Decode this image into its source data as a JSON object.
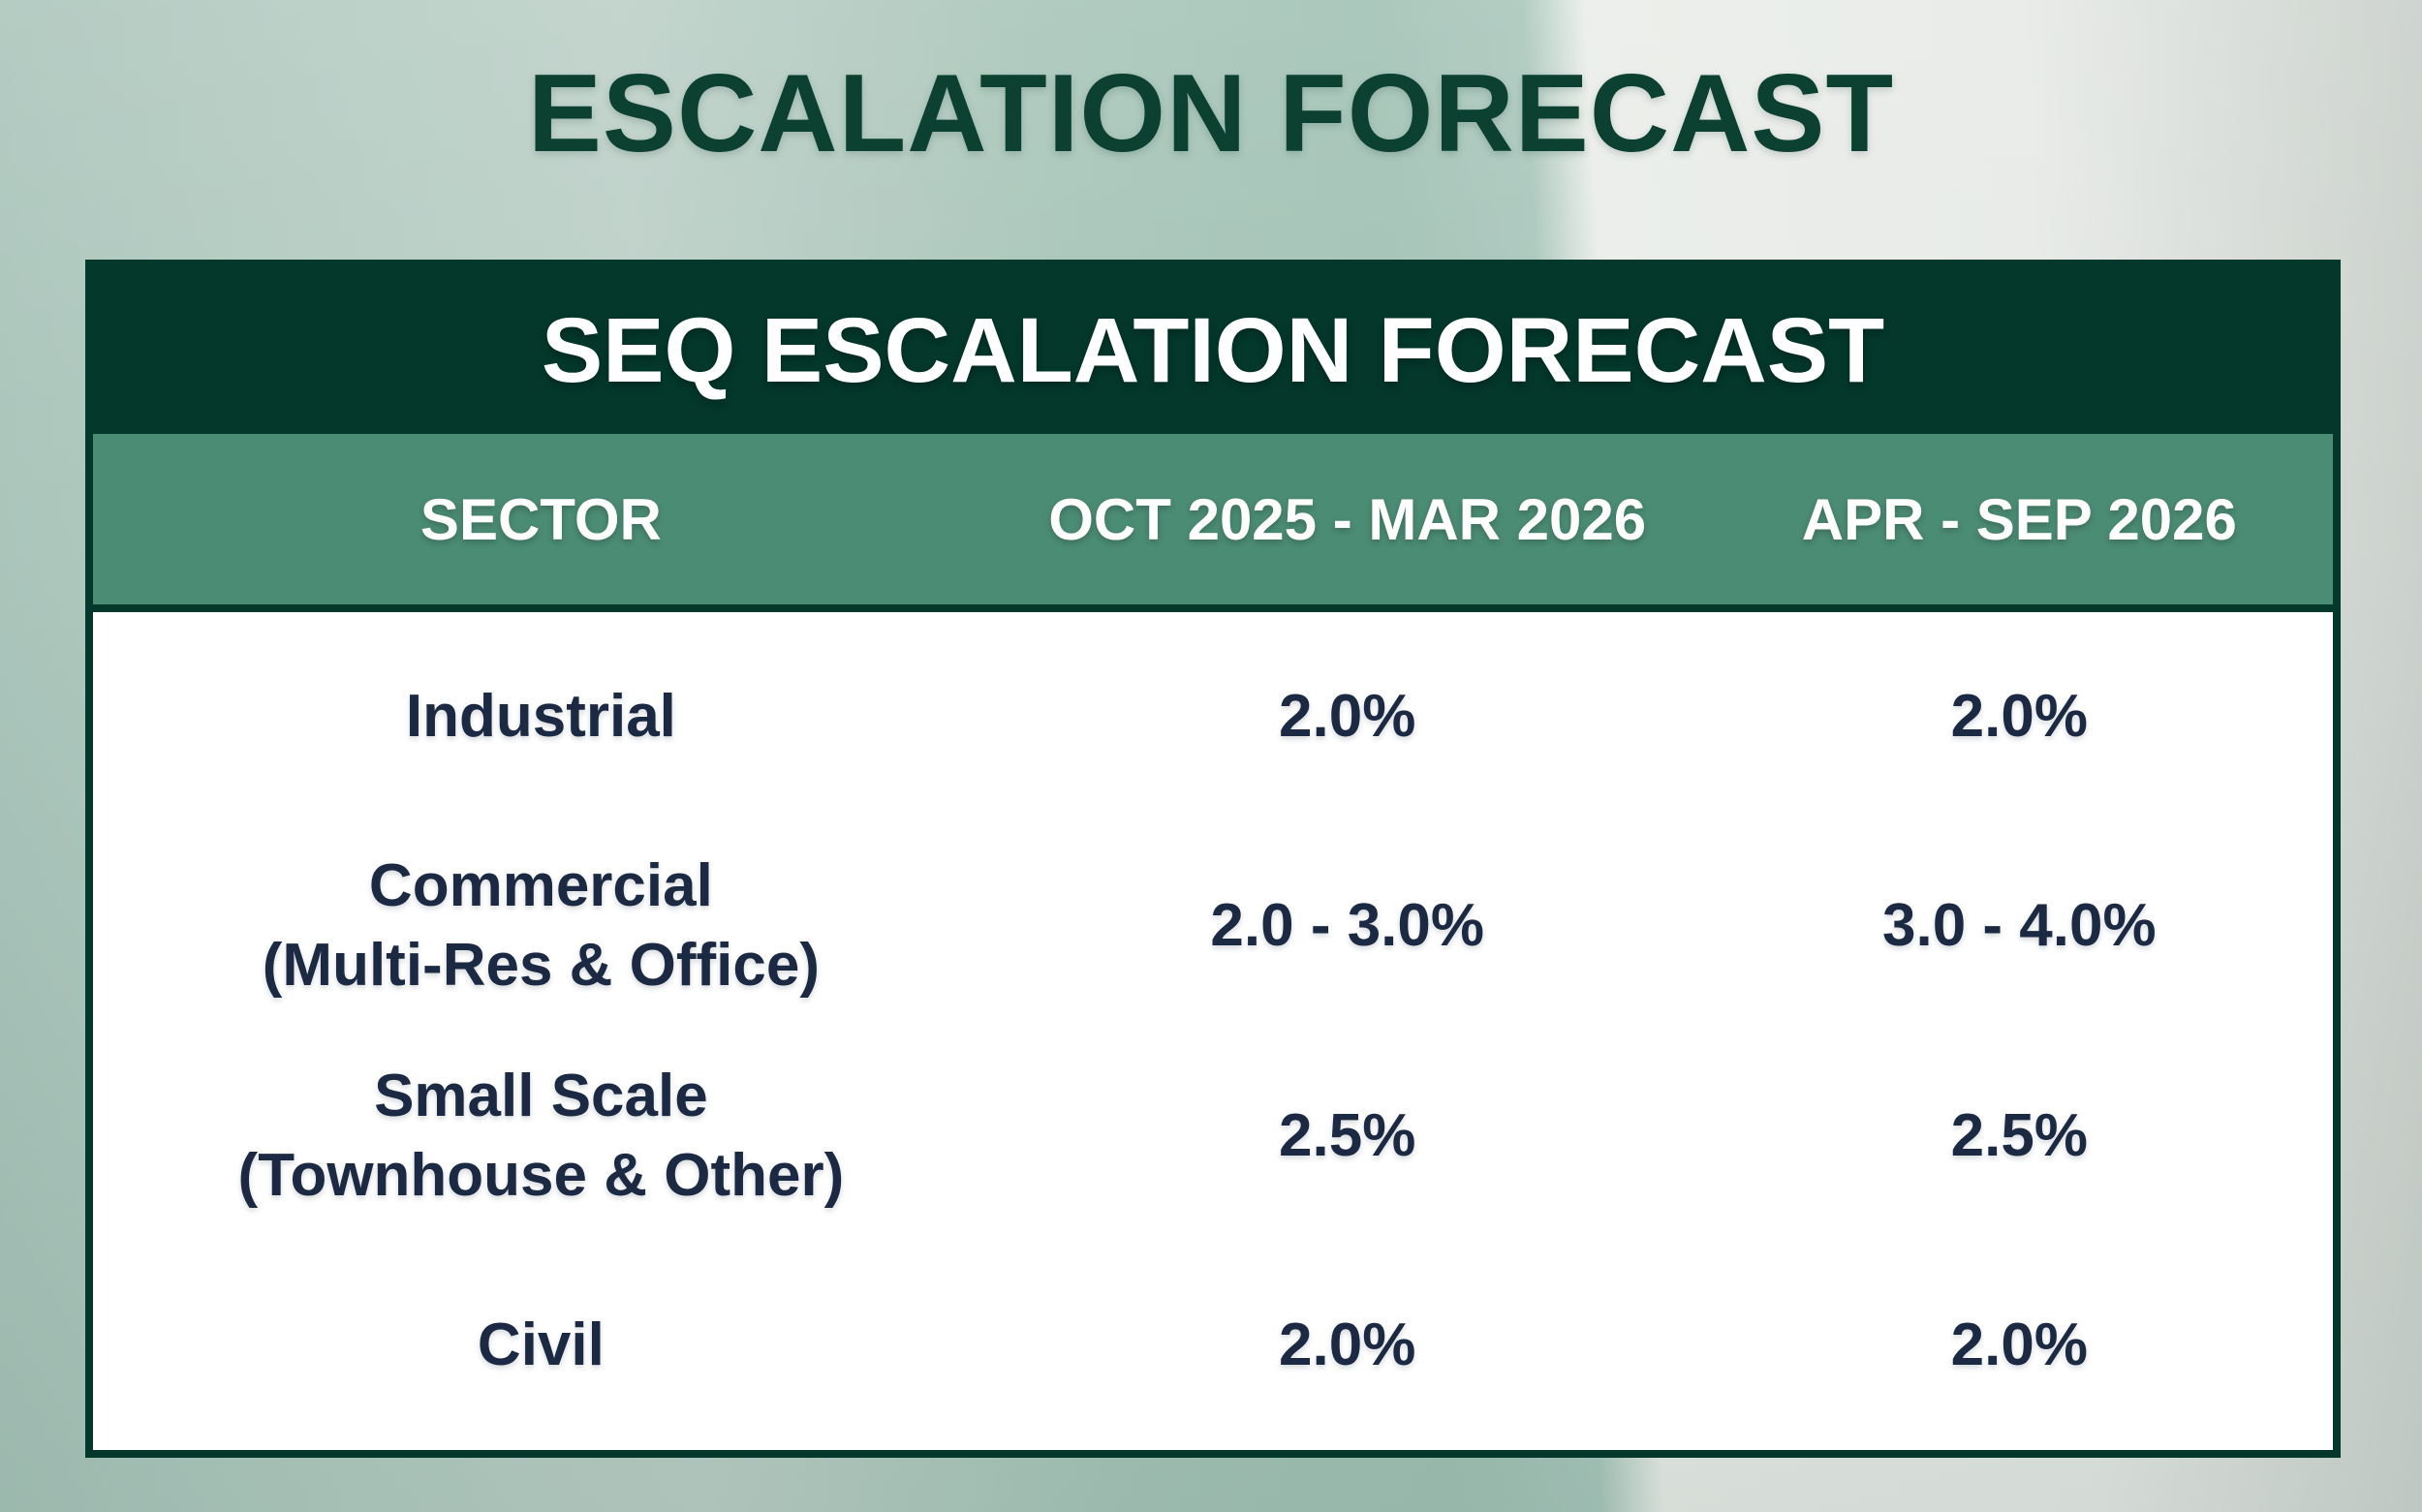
{
  "page_title": "ESCALATION FORECAST",
  "table": {
    "title": "SEQ ESCALATION FORECAST",
    "columns": [
      "SECTOR",
      "OCT 2025 - MAR 2026",
      "APR - SEP 2026"
    ],
    "rows": [
      {
        "sector": [
          "Industrial"
        ],
        "values": [
          "2.0%",
          "2.0%"
        ]
      },
      {
        "sector": [
          "Commercial",
          "(Multi-Res & Office)"
        ],
        "values": [
          "2.0 - 3.0%",
          "3.0 - 4.0%"
        ]
      },
      {
        "sector": [
          "Small Scale",
          "(Townhouse & Other)"
        ],
        "values": [
          "2.5%",
          "2.5%"
        ]
      },
      {
        "sector": [
          "Civil"
        ],
        "values": [
          "2.0%",
          "2.0%"
        ]
      }
    ]
  },
  "colors": {
    "dark-green": "#03382b",
    "mid-green": "#4b8c74",
    "title-green": "#0c4030",
    "text-navy": "#1b2a42",
    "table-bg": "#ffffff"
  },
  "chart_data": {
    "type": "table",
    "title": "ESCALATION FORECAST",
    "subtitle": "SEQ ESCALATION FORECAST",
    "columns": [
      "SECTOR",
      "OCT 2025 - MAR 2026",
      "APR - SEP 2026"
    ],
    "rows": [
      [
        "Industrial",
        "2.0%",
        "2.0%"
      ],
      [
        "Commercial (Multi-Res & Office)",
        "2.0 - 3.0%",
        "3.0 - 4.0%"
      ],
      [
        "Small Scale (Townhouse & Other)",
        "2.5%",
        "2.5%"
      ],
      [
        "Civil",
        "2.0%",
        "2.0%"
      ]
    ]
  }
}
